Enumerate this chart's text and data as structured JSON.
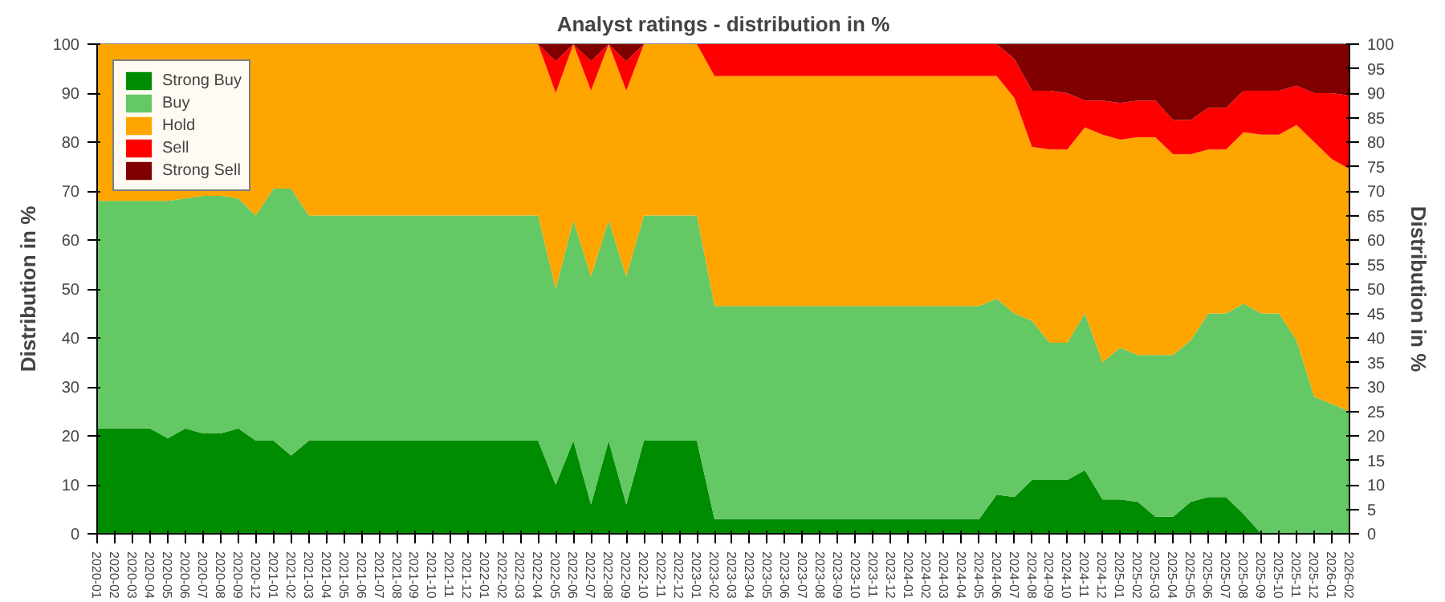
{
  "chart_data": {
    "type": "area",
    "stacked": true,
    "title": "Analyst ratings - distribution in %",
    "ylabel": "Distribution in %",
    "y2label": "Distribution in %",
    "categories": [
      "2020-01",
      "2020-02",
      "2020-03",
      "2020-04",
      "2020-05",
      "2020-06",
      "2020-07",
      "2020-08",
      "2020-09",
      "2020-12",
      "2021-01",
      "2021-02",
      "2021-03",
      "2021-04",
      "2021-05",
      "2021-06",
      "2021-07",
      "2021-08",
      "2021-09",
      "2021-10",
      "2021-11",
      "2021-12",
      "2022-01",
      "2022-02",
      "2022-03",
      "2022-04",
      "2022-05",
      "2022-06",
      "2022-07",
      "2022-08",
      "2022-09",
      "2022-10",
      "2022-11",
      "2022-12",
      "2023-01",
      "2023-02",
      "2023-03",
      "2023-04",
      "2023-05",
      "2023-06",
      "2023-07",
      "2023-08",
      "2023-09",
      "2023-10",
      "2023-11",
      "2023-12",
      "2024-01",
      "2024-02",
      "2024-03",
      "2024-04",
      "2024-05",
      "2024-06",
      "2024-07",
      "2024-08",
      "2024-09",
      "2024-10",
      "2024-11",
      "2024-12",
      "2025-01",
      "2025-02",
      "2025-03",
      "2025-04",
      "2025-05",
      "2025-06",
      "2025-07",
      "2025-08",
      "2025-09",
      "2025-10",
      "2025-11",
      "2025-12",
      "2026-01",
      "2026-02"
    ],
    "series": [
      {
        "name": "Strong Buy",
        "color": "#008c00",
        "values": [
          21.5,
          21.5,
          21.5,
          21.5,
          19.5,
          21.5,
          20.5,
          20.5,
          21.5,
          19,
          19,
          16,
          19,
          19,
          19,
          19,
          19,
          19,
          19,
          19,
          19,
          19,
          19,
          19,
          19,
          19,
          10,
          19,
          6,
          19,
          6,
          19,
          19,
          19,
          19,
          3,
          3,
          3,
          3,
          3,
          3,
          3,
          3,
          3,
          3,
          3,
          3,
          3,
          3,
          3,
          3,
          8,
          7.5,
          11,
          11,
          11,
          13,
          7,
          7,
          6.5,
          3.5,
          3.5,
          6.5,
          7.5,
          7.5,
          4,
          0,
          0,
          0,
          0,
          0,
          0
        ]
      },
      {
        "name": "Buy",
        "color": "#64c864",
        "values": [
          46.5,
          46.5,
          46.5,
          46.5,
          48.5,
          47,
          48.5,
          48.5,
          47,
          46,
          51.5,
          54.5,
          46,
          46,
          46,
          46,
          46,
          46,
          46,
          46,
          46,
          46,
          46,
          46,
          46,
          46,
          40,
          45,
          46.5,
          45,
          46.5,
          46,
          46,
          46,
          46,
          43.5,
          43.5,
          43.5,
          43.5,
          43.5,
          43.5,
          43.5,
          43.5,
          43.5,
          43.5,
          43.5,
          43.5,
          43.5,
          43.5,
          43.5,
          43.5,
          40,
          37.5,
          32.5,
          28,
          28,
          32,
          28,
          31,
          30,
          33,
          33,
          33,
          37.5,
          37.5,
          43,
          45,
          45,
          39.5,
          28,
          26.5,
          25
        ]
      },
      {
        "name": "Hold",
        "color": "#ffa500",
        "values": [
          32,
          32,
          32,
          32,
          32,
          31.5,
          31,
          31,
          31.5,
          35,
          29.5,
          29.5,
          35,
          35,
          35,
          35,
          35,
          35,
          35,
          35,
          35,
          35,
          35,
          35,
          35,
          35,
          40,
          36,
          38,
          36,
          38,
          35,
          35,
          35,
          35,
          47,
          47,
          47,
          47,
          47,
          47,
          47,
          47,
          47,
          47,
          47,
          47,
          47,
          47,
          47,
          47,
          45.5,
          44,
          35.5,
          39.5,
          39.5,
          38,
          46.5,
          42.5,
          44.5,
          44.5,
          41,
          38,
          33.5,
          33.5,
          35,
          36.5,
          36.5,
          44,
          52,
          50,
          49.5
        ]
      },
      {
        "name": "Sell",
        "color": "#ff0000",
        "values": [
          0,
          0,
          0,
          0,
          0,
          0,
          0,
          0,
          0,
          0,
          0,
          0,
          0,
          0,
          0,
          0,
          0,
          0,
          0,
          0,
          0,
          0,
          0,
          0,
          0,
          0,
          6.5,
          0,
          6,
          0,
          6,
          0,
          0,
          0,
          0,
          6.5,
          6.5,
          6.5,
          6.5,
          6.5,
          6.5,
          6.5,
          6.5,
          6.5,
          6.5,
          6.5,
          6.5,
          6.5,
          6.5,
          6.5,
          6.5,
          6.5,
          8,
          11.5,
          12,
          11.5,
          5.5,
          7,
          7.5,
          7.5,
          7.5,
          7,
          7,
          8.5,
          8.5,
          8.5,
          9,
          9,
          8,
          10,
          13.5,
          15
        ]
      },
      {
        "name": "Strong Sell",
        "color": "#800000",
        "values": [
          0,
          0,
          0,
          0,
          0,
          0,
          0,
          0,
          0,
          0,
          0,
          0,
          0,
          0,
          0,
          0,
          0,
          0,
          0,
          0,
          0,
          0,
          0,
          0,
          0,
          0,
          3.5,
          0,
          3.5,
          0,
          3.5,
          0,
          0,
          0,
          0,
          0,
          0,
          0,
          0,
          0,
          0,
          0,
          0,
          0,
          0,
          0,
          0,
          0,
          0,
          0,
          0,
          0,
          3,
          9.5,
          9.5,
          10,
          11.5,
          11.5,
          12,
          11.5,
          11.5,
          15.5,
          15.5,
          13,
          13,
          9.5,
          9.5,
          9.5,
          8.5,
          10,
          10,
          10.5
        ]
      }
    ],
    "ylim": [
      0,
      100
    ],
    "yticks": [
      0,
      10,
      20,
      30,
      40,
      50,
      60,
      70,
      80,
      90,
      100
    ],
    "y2lim": [
      0,
      100
    ],
    "y2ticks": [
      0,
      5,
      10,
      15,
      20,
      25,
      30,
      35,
      40,
      45,
      50,
      55,
      60,
      65,
      70,
      75,
      80,
      85,
      90,
      95,
      100
    ],
    "legend": "top left"
  }
}
